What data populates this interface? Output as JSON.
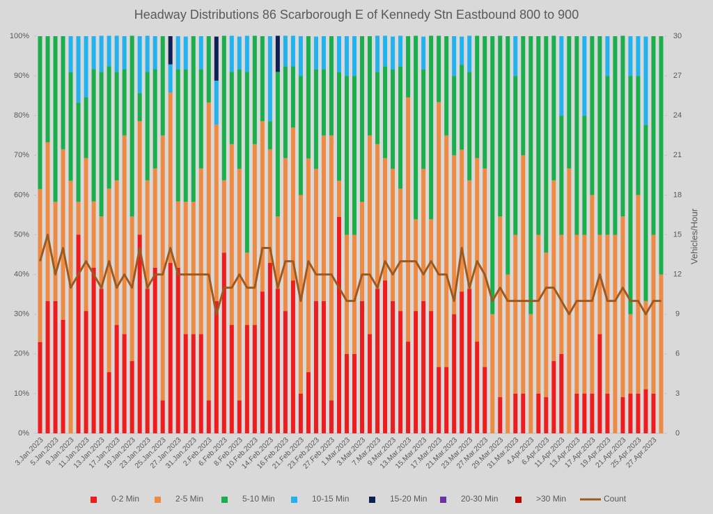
{
  "chart_data": {
    "type": "bar",
    "stacked": true,
    "title": "Headway Distributions 86 Scarborough  E of Kennedy Stn Eastbound 800 to 900",
    "y2_label": "Vehicles/Hour",
    "categories": [
      "3.Jan.2023",
      null,
      "5.Jan.2023",
      null,
      "9.Jan.2023",
      null,
      "11.Jan.2023",
      null,
      "13.Jan.2023",
      null,
      "17.Jan.2023",
      null,
      "19.Jan.2023",
      null,
      "23.Jan.2023",
      null,
      "25.Jan.2023",
      null,
      "27.Jan.2023",
      null,
      "31.Jan.2023",
      null,
      "2.Feb.2023",
      null,
      "6.Feb.2023",
      null,
      "8.Feb.2023",
      null,
      "10.Feb.2023",
      null,
      "14.Feb.2023",
      null,
      "16.Feb.2023",
      null,
      "21.Feb.2023",
      null,
      "23.Feb.2023",
      null,
      "27.Feb.2023",
      null,
      "1.Mar.2023",
      null,
      "3.Mar.2023",
      null,
      "7.Mar.2023",
      null,
      "9.Mar.2023",
      null,
      "13.Mar.2023",
      null,
      "15.Mar.2023",
      null,
      "17.Mar.2023",
      null,
      "21.Mar.2023",
      null,
      "23.Mar.2023",
      null,
      "27.Mar.2023",
      null,
      "29.Mar.2023",
      null,
      "31.Mar.2023",
      null,
      "4.Apr.2023",
      null,
      "6.Apr.2023",
      null,
      "11.Apr.2023",
      null,
      "13.Apr.2023",
      null,
      "17.Apr.2023",
      null,
      "19.Apr.2023",
      null,
      "21.Apr.2023",
      null,
      "25.Apr.2023",
      null,
      "27.Apr.2023",
      null
    ],
    "series": [
      {
        "name": "0-2 Min",
        "color": "#ee1c1c",
        "values": [
          23,
          33.3,
          33.3,
          28.6,
          0,
          50,
          30.8,
          41.7,
          36.4,
          15.4,
          27.3,
          25,
          18.2,
          50,
          36.4,
          41.7,
          8.3,
          42.9,
          41.7,
          25,
          25,
          25,
          8.3,
          33.3,
          45.5,
          27.3,
          8.3,
          27.3,
          27.3,
          35.7,
          42.9,
          36.4,
          30.8,
          38.5,
          10,
          15.4,
          33.3,
          33.3,
          8.3,
          54.5,
          20,
          20,
          33.3,
          25,
          36.4,
          38.5,
          33.3,
          30.8,
          23.1,
          30.8,
          33.3,
          30.8,
          16.7,
          16.7,
          30,
          35.7,
          36.4,
          23.1,
          16.7,
          0,
          9.1,
          0,
          10,
          10,
          0,
          10,
          9.1,
          18.2,
          20,
          0,
          10,
          10,
          10,
          25,
          10,
          0,
          9.1,
          10,
          10,
          11.1,
          10,
          0
        ]
      },
      {
        "name": "2-5 Min",
        "color": "#ed8b45",
        "values": [
          38.5,
          40,
          25,
          42.9,
          63.6,
          8.3,
          38.5,
          16.7,
          18.2,
          46.2,
          36.4,
          50,
          36.4,
          28.6,
          27.3,
          25,
          66.7,
          42.9,
          16.7,
          33.3,
          33.3,
          41.7,
          75,
          44.4,
          18.2,
          45.5,
          58.3,
          18.2,
          45.5,
          42.9,
          28.6,
          18.2,
          38.5,
          38.5,
          50,
          53.8,
          33.3,
          41.7,
          66.7,
          9.1,
          30,
          30,
          25,
          50,
          36.4,
          30.8,
          33.3,
          30.8,
          61.5,
          23.1,
          33.3,
          23.1,
          66.7,
          58.3,
          40,
          35.7,
          27.3,
          46.2,
          50,
          30,
          45.5,
          40,
          40,
          60,
          30,
          40,
          36.4,
          45.5,
          30,
          66.7,
          40,
          40,
          50,
          25,
          40,
          50,
          45.5,
          20,
          50,
          22.2,
          40,
          40
        ]
      },
      {
        "name": "5-10 Min",
        "color": "#1aae4c",
        "values": [
          38.5,
          26.7,
          41.7,
          28.5,
          27.3,
          25,
          15.3,
          33.3,
          36.4,
          30.8,
          27.3,
          16.7,
          45.5,
          7.1,
          27.3,
          25,
          25,
          0,
          33.3,
          33.3,
          41.7,
          25,
          16.7,
          0,
          36.4,
          18.2,
          25,
          45.5,
          27.3,
          21.4,
          7.1,
          36.4,
          23.1,
          15.4,
          30,
          30.8,
          25,
          16.7,
          25,
          27.3,
          40,
          40,
          41.7,
          25,
          18.2,
          23.1,
          25,
          30.8,
          15.4,
          46.2,
          25,
          46.2,
          16.7,
          25,
          20,
          21.4,
          27.3,
          30.8,
          33.3,
          70,
          45.5,
          60,
          40,
          30,
          70,
          50,
          54.5,
          36.4,
          30,
          33.3,
          50,
          30,
          40,
          50,
          40,
          50,
          45.5,
          60,
          30,
          44.4,
          50,
          60
        ]
      },
      {
        "name": "10-15 Min",
        "color": "#22b2ee",
        "values": [
          0,
          0,
          0,
          0,
          9.1,
          16.7,
          15.4,
          8.3,
          9.1,
          7.7,
          9.1,
          8.3,
          0,
          14.3,
          9.1,
          8.3,
          0,
          7.1,
          8.3,
          8.3,
          0,
          8.3,
          0,
          11.1,
          0,
          9.1,
          8.3,
          9.1,
          0,
          0,
          21.4,
          0,
          7.7,
          7.7,
          10,
          0,
          8.3,
          8.3,
          0,
          9.1,
          10,
          10,
          0,
          0,
          9.1,
          7.7,
          8.3,
          7.7,
          0,
          0,
          8.3,
          0,
          0,
          0,
          10,
          7.1,
          9.1,
          0,
          0,
          0,
          0,
          0,
          10,
          0,
          0,
          0,
          0,
          0,
          20,
          0,
          0,
          20,
          0,
          0,
          10,
          0,
          0,
          10,
          10,
          22.2,
          0,
          0
        ]
      },
      {
        "name": "15-20 Min",
        "color": "#0e1f54",
        "values": [
          0,
          0,
          0,
          0,
          0,
          0,
          0,
          0,
          0,
          0,
          0,
          0,
          0,
          0,
          0,
          0,
          0,
          7.1,
          0,
          0,
          0,
          0,
          0,
          11.1,
          0,
          0,
          0,
          0,
          0,
          0,
          0,
          9.1,
          0,
          0,
          0,
          0,
          0,
          0,
          0,
          0,
          0,
          0,
          0,
          0,
          0,
          0,
          0,
          0,
          0,
          0,
          0,
          0,
          0,
          0,
          0,
          0,
          0,
          0,
          0,
          0,
          0,
          0,
          0,
          0,
          0,
          0,
          0,
          0,
          0,
          0,
          0,
          0,
          0,
          0,
          0,
          0,
          0,
          0,
          0,
          0,
          0,
          0
        ]
      },
      {
        "name": "20-30 Min",
        "color": "#7030a0",
        "values": [
          0,
          0,
          0,
          0,
          0,
          0,
          0,
          0,
          0,
          0,
          0,
          0,
          0,
          0,
          0,
          0,
          0,
          0,
          0,
          0,
          0,
          0,
          0,
          0,
          0,
          0,
          0,
          0,
          0,
          0,
          0,
          0,
          0,
          0,
          0,
          0,
          0,
          0,
          0,
          0,
          0,
          0,
          0,
          0,
          0,
          0,
          0,
          0,
          0,
          0,
          0,
          0,
          0,
          0,
          0,
          0,
          0,
          0,
          0,
          0,
          0,
          0,
          0,
          0,
          0,
          0,
          0,
          0,
          0,
          0,
          0,
          0,
          0,
          0,
          0,
          0,
          0,
          0,
          0,
          0,
          0,
          0
        ]
      },
      {
        "name": ">30 Min",
        "color": "#c00000",
        "values": [
          0,
          0,
          0,
          0,
          0,
          0,
          0,
          0,
          0,
          0,
          0,
          0,
          0,
          0,
          0,
          0,
          0,
          0,
          0,
          0,
          0,
          0,
          0,
          0,
          0,
          0,
          0,
          0,
          0,
          0,
          0,
          0,
          0,
          0,
          0,
          0,
          0,
          0,
          0,
          0,
          0,
          0,
          0,
          0,
          0,
          0,
          0,
          0,
          0,
          0,
          0,
          0,
          0,
          0,
          0,
          0,
          0,
          0,
          0,
          0,
          0,
          0,
          0,
          0,
          0,
          0,
          0,
          0,
          0,
          0,
          0,
          0,
          0,
          0,
          0,
          0,
          0,
          0,
          0,
          0,
          0,
          0
        ]
      },
      {
        "name": "Count",
        "color": "#9e5a1e",
        "type": "line",
        "axis": "y2",
        "values": [
          13,
          15,
          12,
          14,
          11,
          12,
          13,
          12,
          11,
          13,
          11,
          12,
          11,
          14,
          11,
          12,
          12,
          14,
          12,
          12,
          12,
          12,
          12,
          9,
          11,
          11,
          12,
          11,
          11,
          14,
          14,
          11,
          13,
          13,
          10,
          13,
          12,
          12,
          12,
          11,
          10,
          10,
          12,
          12,
          11,
          13,
          12,
          13,
          13,
          13,
          12,
          13,
          12,
          12,
          10,
          14,
          11,
          13,
          12,
          10,
          11,
          10,
          10,
          10,
          10,
          10,
          11,
          11,
          10,
          9,
          10,
          10,
          10,
          12,
          10,
          10,
          11,
          10,
          10,
          9,
          10,
          10
        ]
      }
    ],
    "ylim": [
      0,
      100
    ],
    "yticks": [
      {
        "value": 0,
        "label": "0%"
      },
      {
        "value": 10,
        "label": "10%"
      },
      {
        "value": 20,
        "label": "20%"
      },
      {
        "value": 30,
        "label": "30%"
      },
      {
        "value": 40,
        "label": "40%"
      },
      {
        "value": 50,
        "label": "50%"
      },
      {
        "value": 60,
        "label": "60%"
      },
      {
        "value": 70,
        "label": "70%"
      },
      {
        "value": 80,
        "label": "80%"
      },
      {
        "value": 90,
        "label": "90%"
      },
      {
        "value": 100,
        "label": "100%"
      }
    ],
    "y2lim": [
      0,
      30
    ],
    "y2ticks": [
      0,
      3,
      6,
      9,
      12,
      15,
      18,
      21,
      24,
      27,
      30
    ],
    "legend": "bottom"
  }
}
